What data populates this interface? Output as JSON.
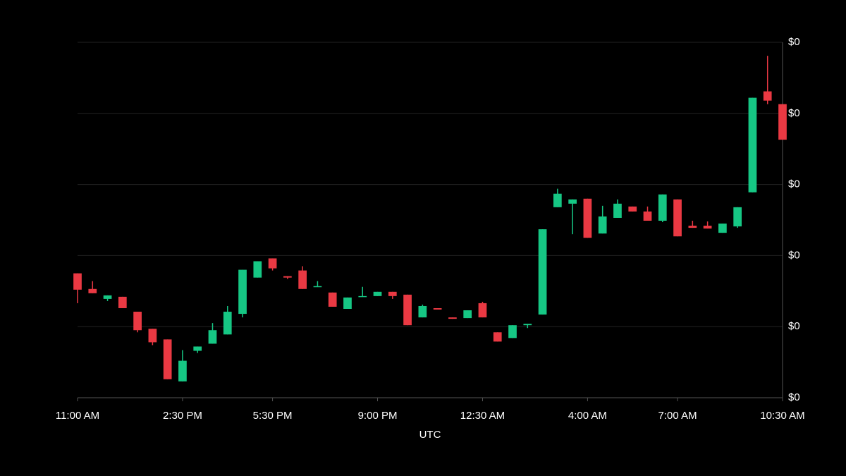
{
  "chart_data": {
    "type": "candlestick",
    "x_axis_label": "UTC",
    "categories": [
      "11:00 AM",
      null,
      null,
      null,
      null,
      null,
      null,
      "2:30 PM",
      null,
      null,
      null,
      null,
      null,
      "5:30 PM",
      null,
      null,
      null,
      null,
      null,
      null,
      "9:00 PM",
      null,
      null,
      null,
      null,
      null,
      null,
      "12:30 AM",
      null,
      null,
      null,
      null,
      null,
      null,
      "4:00 AM",
      null,
      null,
      null,
      null,
      null,
      "7:00 AM",
      null,
      null,
      null,
      null,
      null,
      null,
      "10:30 AM"
    ],
    "open": [
      0.000175,
      0.000153,
      0.000139,
      0.000142,
      0.000121,
      9.7e-05,
      8.2e-05,
      2.3e-05,
      6.6e-05,
      7.6e-05,
      8.9e-05,
      0.000118,
      0.000169,
      0.000196,
      0.000171,
      0.000179,
      0.000156,
      0.000148,
      0.000125,
      0.000142,
      0.000143,
      0.000149,
      0.000145,
      0.000113,
      0.000126,
      0.000113,
      0.000112,
      0.000133,
      9.2e-05,
      8.4e-05,
      0.000102,
      0.000117,
      0.000268,
      0.000273,
      0.00028,
      0.000231,
      0.000253,
      0.000269,
      0.000262,
      0.000249,
      0.000279,
      0.000242,
      0.000242,
      0.000232,
      0.000241,
      0.000289,
      0.000431,
      0.000413
    ],
    "high": [
      0.000175,
      0.000164,
      0.000144,
      0.000142,
      0.000121,
      9.7e-05,
      8.2e-05,
      6.7e-05,
      7.2e-05,
      0.000105,
      0.000129,
      0.00018,
      0.000192,
      0.000196,
      0.000171,
      0.000185,
      0.000164,
      0.000148,
      0.000141,
      0.000156,
      0.000149,
      0.000149,
      0.000145,
      0.000131,
      0.000126,
      0.000113,
      0.000123,
      0.000135,
      9.2e-05,
      0.000102,
      0.000104,
      0.000237,
      0.000294,
      0.000279,
      0.00028,
      0.00027,
      0.000279,
      0.000269,
      0.000269,
      0.000286,
      0.000279,
      0.000249,
      0.000248,
      0.000245,
      0.000268,
      0.000422,
      0.000481,
      0.000413
    ],
    "low": [
      0.000133,
      0.000147,
      0.000136,
      0.000126,
      9.2e-05,
      7.4e-05,
      2.6e-05,
      2.3e-05,
      6.3e-05,
      7.6e-05,
      8.9e-05,
      0.000113,
      0.000169,
      0.000179,
      0.000167,
      0.000153,
      0.000156,
      0.000128,
      0.000125,
      0.000142,
      0.000143,
      0.000139,
      0.000102,
      0.000113,
      0.000124,
      0.000111,
      0.000112,
      0.000113,
      7.9e-05,
      8.4e-05,
      9.8e-05,
      0.000117,
      0.000268,
      0.00023,
      0.000225,
      0.000231,
      0.000253,
      0.000262,
      0.000249,
      0.000247,
      0.000227,
      0.000239,
      0.000238,
      0.000232,
      0.000239,
      0.000289,
      0.000413,
      0.000363
    ],
    "close": [
      0.000152,
      0.000147,
      0.000144,
      0.000126,
      9.5e-05,
      7.8e-05,
      2.6e-05,
      5.2e-05,
      7.2e-05,
      9.5e-05,
      0.000121,
      0.00018,
      0.000192,
      0.000182,
      0.000169,
      0.000153,
      0.000157,
      0.000128,
      0.000141,
      0.000143,
      0.000149,
      0.000143,
      0.000102,
      0.000129,
      0.000124,
      0.000111,
      0.000123,
      0.000113,
      7.9e-05,
      0.000102,
      0.000104,
      0.000237,
      0.000287,
      0.000279,
      0.000225,
      0.000255,
      0.000273,
      0.000262,
      0.000249,
      0.000286,
      0.000227,
      0.000239,
      0.000238,
      0.000245,
      0.000268,
      0.000422,
      0.000418,
      0.000363
    ],
    "up_color": "#16c784",
    "down_color": "#ea3943",
    "ylim": [
      0,
      0.0005
    ],
    "yticks": [
      {
        "value": 0,
        "label": "$0"
      },
      {
        "value": 0.0001,
        "label": "$0"
      },
      {
        "value": 0.0002,
        "label": "$0"
      },
      {
        "value": 0.0003,
        "label": "$0"
      },
      {
        "value": 0.0004,
        "label": "$0"
      },
      {
        "value": 0.0005,
        "label": "$0"
      }
    ],
    "grid": true,
    "y_axis_side": "right"
  }
}
